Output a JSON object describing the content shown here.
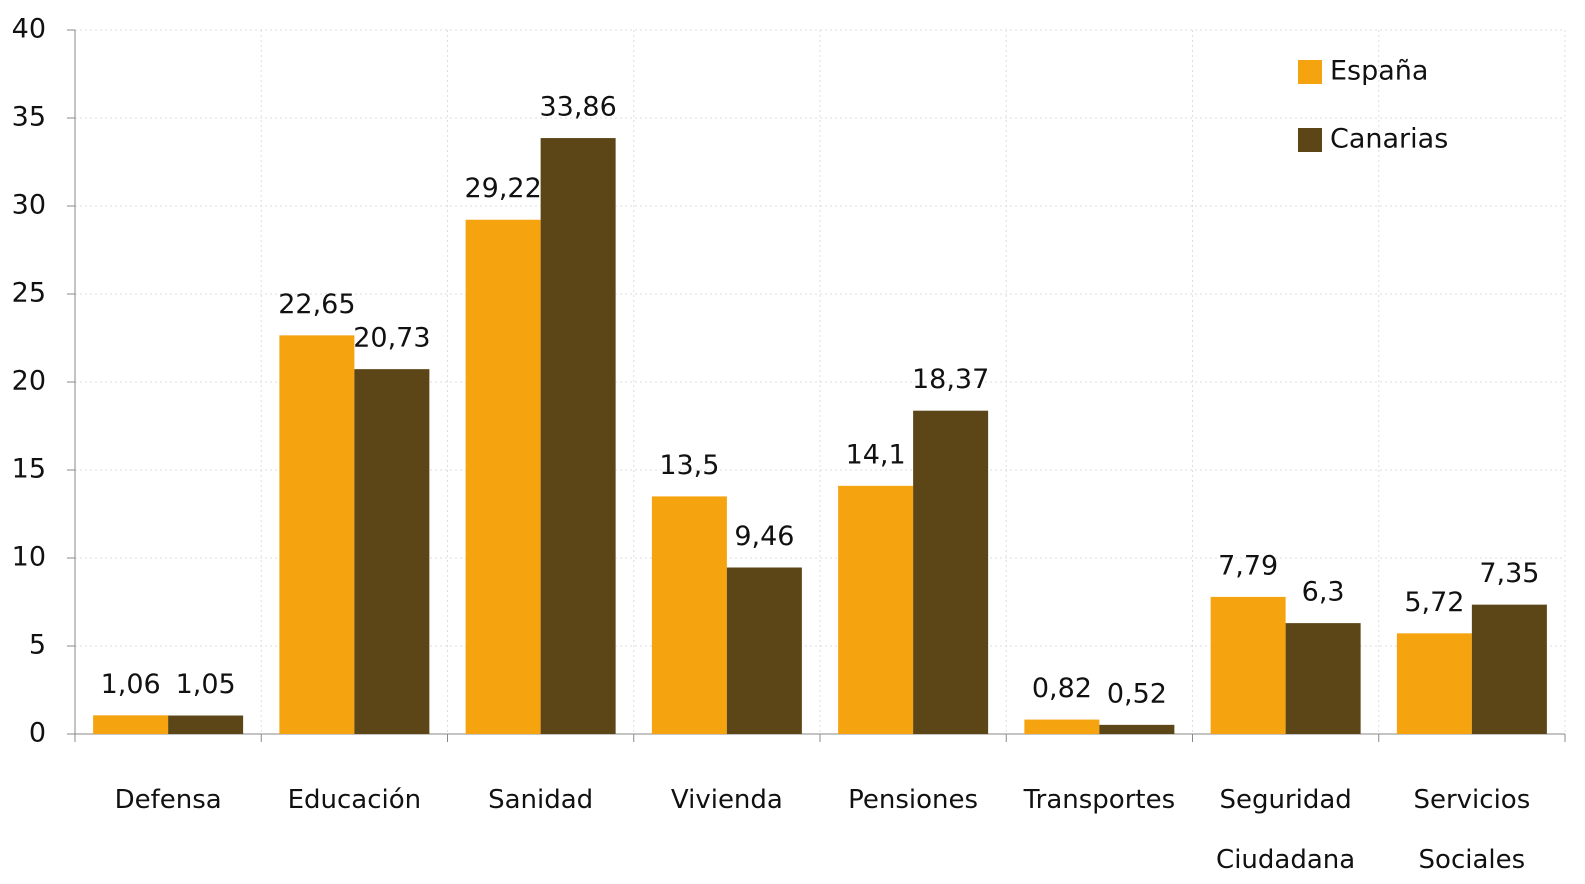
{
  "chart_data": {
    "type": "bar",
    "categories": [
      "Defensa",
      "Educación",
      "Sanidad",
      "Vivienda",
      "Pensiones",
      "Transportes",
      "Seguridad Ciudadana",
      "Servicios Sociales"
    ],
    "series": [
      {
        "name": "España",
        "color": "#f5a30f",
        "values": [
          1.06,
          22.65,
          29.22,
          13.5,
          14.1,
          0.82,
          7.79,
          5.72
        ],
        "value_labels": [
          "1,06",
          "22,65",
          "29,22",
          "13,5",
          "14,1",
          "0,82",
          "7,79",
          "5,72"
        ]
      },
      {
        "name": "Canarias",
        "color": "#5c4516",
        "values": [
          1.05,
          20.73,
          33.86,
          9.46,
          18.37,
          0.52,
          6.3,
          7.35
        ],
        "value_labels": [
          "1,05",
          "20,73",
          "33,86",
          "9,46",
          "18,37",
          "0,52",
          "6,3",
          "7,35"
        ]
      }
    ],
    "ylim": [
      0,
      40
    ],
    "yticks": [
      0,
      5,
      10,
      15,
      20,
      25,
      30,
      35,
      40
    ],
    "grid": true,
    "legend": "top-right"
  }
}
